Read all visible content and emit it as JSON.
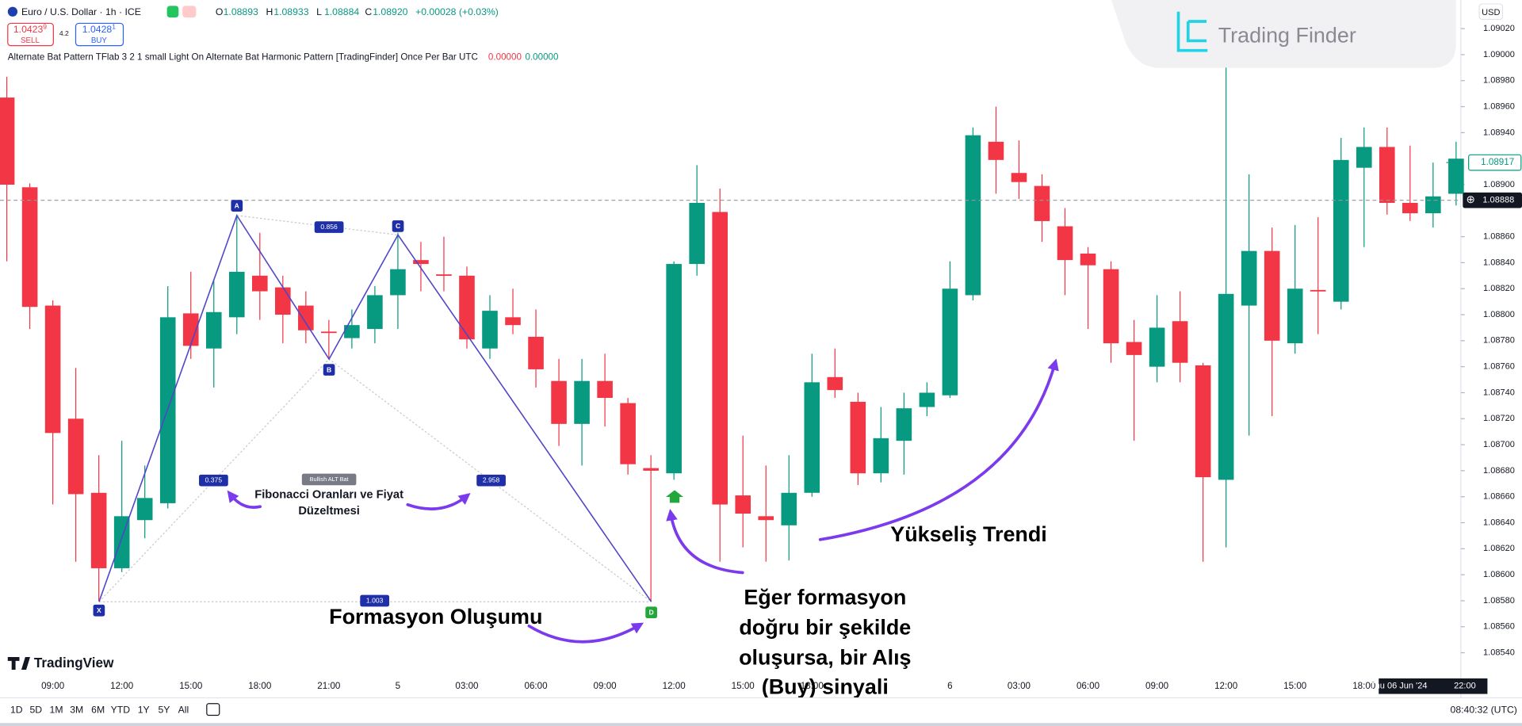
{
  "header": {
    "symbol": "Euro / U.S. Dollar · 1h · ICE",
    "ohlc": [
      {
        "key": "O",
        "value": "1.08893"
      },
      {
        "key": "H",
        "value": "1.08933"
      },
      {
        "key": "L",
        "value": "1.08884"
      },
      {
        "key": "C",
        "value": "1.08920"
      }
    ],
    "change": "+0.00028 (+0.03%)",
    "sell": {
      "price": "1.0423",
      "sup": "9",
      "label": "SELL"
    },
    "spread": "4.2",
    "buy": {
      "price": "1.0428",
      "sup": "1",
      "label": "BUY"
    },
    "indicator": {
      "name": "Alternate Bat Pattern TFlab 3 2 1 small Light On Alternate Bat Harmonic Pattern [TradingFinder] Once Per Bar UTC",
      "values": [
        "0.00000",
        "0.00000"
      ]
    },
    "currency": "USD"
  },
  "brand": {
    "trading_finder": "Trading Finder",
    "tradingview": "TradingView"
  },
  "annotations": {
    "fibonacci": [
      "Fibonacci Oranları ve Fiyat",
      "Düzeltmesi"
    ],
    "formation": "Formasyon Oluşumu",
    "signal": [
      "Eğer formasyon",
      "doğru bir şekilde",
      "oluşursa, bir Alış",
      "(Buy) sinyali"
    ],
    "trend": "Yükseliş Trendi"
  },
  "toolbar": {
    "ranges": [
      "1D",
      "5D",
      "1M",
      "3M",
      "6M",
      "YTD",
      "1Y",
      "5Y",
      "All"
    ],
    "clock": "08:40:32 (UTC)"
  },
  "chart_data": {
    "type": "candlestick",
    "x": [
      null,
      null,
      "09:00",
      null,
      null,
      "12:00",
      null,
      null,
      "15:00",
      null,
      null,
      "18:00",
      null,
      null,
      "21:00",
      null,
      null,
      "5",
      null,
      null,
      "03:00",
      null,
      null,
      "06:00",
      null,
      null,
      "09:00",
      null,
      null,
      "12:00",
      null,
      null,
      "15:00",
      null,
      null,
      "18:00",
      null,
      null,
      null,
      null,
      null,
      "6",
      null,
      null,
      "03:00",
      null,
      null,
      "06:00",
      null,
      null,
      "09:00",
      null,
      null,
      "12:00",
      null,
      null,
      "15:00",
      null,
      null,
      "18:00",
      null,
      null,
      null,
      null
    ],
    "open": [
      1.08967,
      1.08898,
      1.08807,
      1.0872,
      1.08663,
      1.08605,
      1.08642,
      1.08655,
      1.08801,
      1.08774,
      1.08798,
      1.0883,
      1.08821,
      1.08807,
      1.08787,
      1.08782,
      1.08789,
      1.08815,
      1.08842,
      1.08831,
      1.0883,
      1.08774,
      1.08798,
      1.08783,
      1.08749,
      1.08716,
      1.08749,
      1.08732,
      1.08682,
      1.08678,
      1.08839,
      1.08879,
      1.08661,
      1.08645,
      1.08638,
      1.08663,
      1.08752,
      1.08733,
      1.08678,
      1.08703,
      1.08729,
      1.08738,
      1.08815,
      1.08933,
      1.08909,
      1.08899,
      1.08868,
      1.08847,
      1.08835,
      1.08779,
      1.0876,
      1.08795,
      1.08761,
      1.08673,
      1.08807,
      1.08849,
      1.08778,
      1.08819,
      1.0881,
      1.08913,
      1.08929,
      1.08886,
      1.08878,
      1.08893
    ],
    "high": [
      1.08983,
      1.08901,
      1.08811,
      1.08759,
      1.08692,
      1.08703,
      1.08684,
      1.08822,
      1.08833,
      1.08826,
      1.08877,
      1.08863,
      1.0883,
      1.08818,
      1.08796,
      1.08804,
      1.08822,
      1.08863,
      1.08856,
      1.0886,
      1.08837,
      1.08815,
      1.0882,
      1.08804,
      1.08766,
      1.08766,
      1.0877,
      1.08736,
      1.08692,
      1.08841,
      1.08915,
      1.08897,
      1.08707,
      1.08684,
      1.08692,
      1.0877,
      1.08774,
      1.0874,
      1.08729,
      1.0874,
      1.08748,
      1.08841,
      1.08944,
      1.0896,
      1.08934,
      1.08908,
      1.08882,
      1.08852,
      1.08841,
      1.08796,
      1.08815,
      1.08818,
      1.08763,
      1.0899,
      1.08908,
      1.08867,
      1.08869,
      1.08875,
      1.08936,
      1.08944,
      1.08944,
      1.0893,
      1.08917,
      1.08933
    ],
    "low": [
      1.08841,
      1.08789,
      1.08654,
      1.0861,
      1.0858,
      1.08602,
      1.08628,
      1.08651,
      1.08766,
      1.08744,
      1.08785,
      1.08796,
      1.08778,
      1.08778,
      1.08766,
      1.08774,
      1.08778,
      1.08789,
      1.08818,
      1.08818,
      1.08774,
      1.08766,
      1.08785,
      1.08744,
      1.08699,
      1.08684,
      1.08714,
      1.08677,
      1.0858,
      1.08673,
      1.0883,
      1.0861,
      1.08621,
      1.0861,
      1.08611,
      1.0866,
      1.08736,
      1.08669,
      1.08671,
      1.08677,
      1.08722,
      1.08736,
      1.08811,
      1.08893,
      1.08889,
      1.08856,
      1.08815,
      1.08789,
      1.08763,
      1.08703,
      1.08748,
      1.08748,
      1.0861,
      1.08621,
      1.08707,
      1.08722,
      1.0877,
      1.08785,
      1.08804,
      1.08852,
      1.08877,
      1.08872,
      1.08867,
      1.08884
    ],
    "close": [
      1.089,
      1.08806,
      1.08709,
      1.08662,
      1.08605,
      1.08645,
      1.08659,
      1.08798,
      1.08776,
      1.08802,
      1.08833,
      1.08818,
      1.088,
      1.08788,
      1.08786,
      1.08792,
      1.08815,
      1.08835,
      1.08839,
      1.0883,
      1.08781,
      1.08803,
      1.08792,
      1.08758,
      1.08716,
      1.08749,
      1.08736,
      1.08685,
      1.0868,
      1.08839,
      1.08886,
      1.08654,
      1.08647,
      1.08642,
      1.08663,
      1.08748,
      1.08742,
      1.08678,
      1.08705,
      1.08728,
      1.0874,
      1.0882,
      1.08938,
      1.08919,
      1.08902,
      1.08872,
      1.08842,
      1.08838,
      1.08778,
      1.08769,
      1.0879,
      1.08763,
      1.08675,
      1.08816,
      1.08849,
      1.0878,
      1.0882,
      1.08818,
      1.08919,
      1.08929,
      1.08886,
      1.08878,
      1.08891,
      1.0892
    ],
    "up_color": "#089981",
    "down_color": "#f23645",
    "ylim": [
      1.08521,
      1.09042
    ],
    "yticks": [
      {
        "value": 1.0902,
        "label": "1.09020"
      },
      {
        "value": 1.09,
        "label": "1.09000"
      },
      {
        "value": 1.0898,
        "label": "1.08980"
      },
      {
        "value": 1.0896,
        "label": "1.08960"
      },
      {
        "value": 1.0894,
        "label": "1.08940"
      },
      {
        "value": 1.089,
        "label": "1.08900"
      },
      {
        "value": 1.0886,
        "label": "1.08860"
      },
      {
        "value": 1.0884,
        "label": "1.08840"
      },
      {
        "value": 1.0882,
        "label": "1.08820"
      },
      {
        "value": 1.088,
        "label": "1.08800"
      },
      {
        "value": 1.0878,
        "label": "1.08780"
      },
      {
        "value": 1.0876,
        "label": "1.08760"
      },
      {
        "value": 1.0874,
        "label": "1.08740"
      },
      {
        "value": 1.0872,
        "label": "1.08720"
      },
      {
        "value": 1.087,
        "label": "1.08700"
      },
      {
        "value": 1.0868,
        "label": "1.08680"
      },
      {
        "value": 1.0866,
        "label": "1.08660"
      },
      {
        "value": 1.0864,
        "label": "1.08640"
      },
      {
        "value": 1.0862,
        "label": "1.08620"
      },
      {
        "value": 1.086,
        "label": "1.08600"
      },
      {
        "value": 1.0858,
        "label": "1.08580"
      },
      {
        "value": 1.0856,
        "label": "1.08560"
      },
      {
        "value": 1.0854,
        "label": "1.08540"
      }
    ],
    "grid": false,
    "last_price": 1.08917,
    "crosshair": {
      "price": 1.08888,
      "date": "Thu 06 Jun '24",
      "time": "22:00"
    },
    "pattern": {
      "name": "Bullish ALT Bat",
      "points": [
        "X",
        "A",
        "B",
        "C",
        "D"
      ],
      "ratios": [
        "0.856",
        "0.375",
        "2.958",
        "1.003"
      ]
    }
  }
}
